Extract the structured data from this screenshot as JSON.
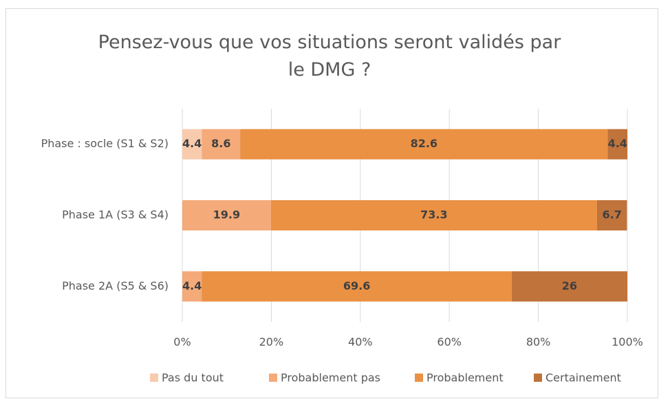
{
  "chart_data": {
    "type": "stacked_bar_horizontal",
    "title": "Pensez-vous que vos situations seront validés par le DMG ?",
    "categories": [
      "Phase : socle (S1 & S2)",
      "Phase 1A (S3 & S4)",
      "Phase 2A (S5 & S6)"
    ],
    "series": [
      {
        "name": "Pas du tout",
        "color": "#f8cbad",
        "values": [
          4.4,
          null,
          null
        ]
      },
      {
        "name": "Probablement pas",
        "color": "#f4aa79",
        "values": [
          8.6,
          19.9,
          4.4
        ]
      },
      {
        "name": "Probablement",
        "color": "#ea9144",
        "values": [
          82.6,
          73.3,
          69.6
        ]
      },
      {
        "name": "Certainement",
        "color": "#c0733a",
        "values": [
          4.4,
          6.7,
          26
        ]
      }
    ],
    "xlim": [
      0,
      100
    ],
    "xticks": [
      {
        "value": 0,
        "label": "0%"
      },
      {
        "value": 20,
        "label": "20%"
      },
      {
        "value": 40,
        "label": "40%"
      },
      {
        "value": 60,
        "label": "60%"
      },
      {
        "value": 80,
        "label": "80%"
      },
      {
        "value": 100,
        "label": "100%"
      }
    ],
    "grid": true,
    "legend": "bottom"
  }
}
